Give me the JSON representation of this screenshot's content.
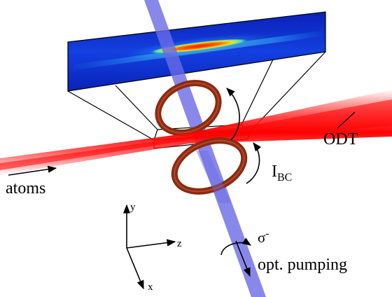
{
  "labels": {
    "odt": "ODT",
    "atoms": "atoms",
    "current": "I",
    "current_sub": "BC",
    "sigma": "σ",
    "sigma_sup": "-",
    "pumping": "opt. pumping",
    "axis_x": "x",
    "axis_y": "y",
    "axis_z": "z"
  },
  "colors": {
    "odt_beam": "#ff0000",
    "pumping_beam": "#6a6ae6",
    "coil_ring": "#8c2a12",
    "image_background": "#0a2ad0",
    "cloud_core": "#ff1a00",
    "outline": "#000000"
  }
}
